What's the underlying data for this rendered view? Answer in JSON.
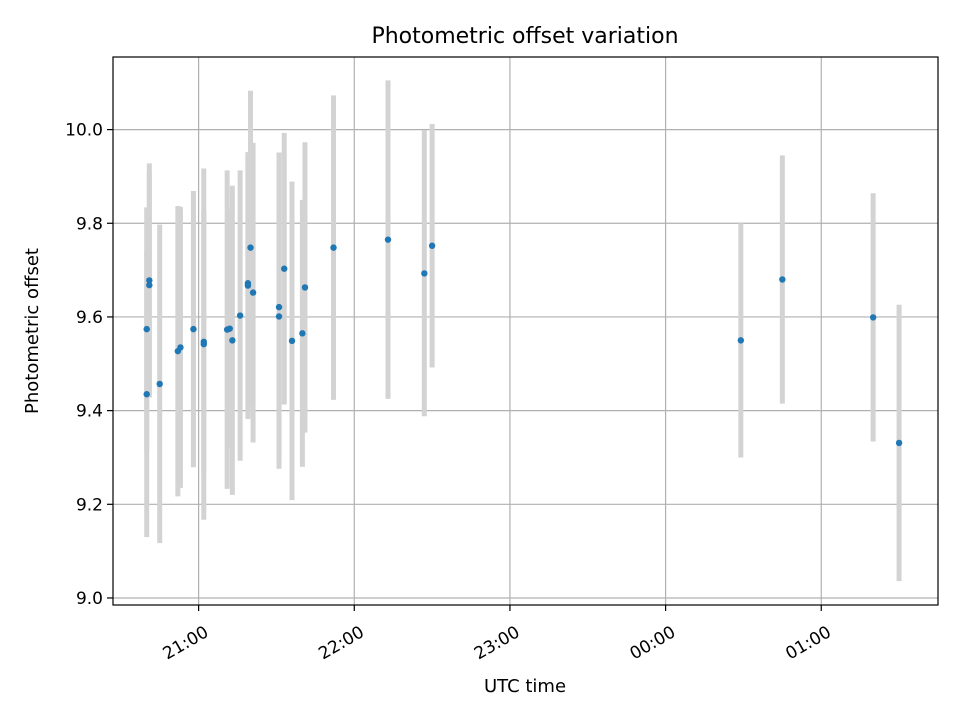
{
  "chart_data": {
    "type": "scatter",
    "title": "Photometric offset variation",
    "xlabel": "UTC time",
    "ylabel": "Photometric offset",
    "x_axis_kind": "time",
    "x_reference_date": "day 0",
    "xlim": [
      "20:27",
      "25:45"
    ],
    "ylim": [
      8.985,
      10.155
    ],
    "grid": true,
    "x_ticks": [
      {
        "label": "21:00",
        "value": "21:00"
      },
      {
        "label": "22:00",
        "value": "22:00"
      },
      {
        "label": "23:00",
        "value": "23:00"
      },
      {
        "label": "00:00",
        "value": "24:00"
      },
      {
        "label": "01:00",
        "value": "25:00"
      }
    ],
    "y_ticks": [
      {
        "label": "9.0",
        "value": 9.0
      },
      {
        "label": "9.2",
        "value": 9.2
      },
      {
        "label": "9.4",
        "value": 9.4
      },
      {
        "label": "9.6",
        "value": 9.6
      },
      {
        "label": "9.8",
        "value": 9.8
      },
      {
        "label": "10.0",
        "value": 10.0
      }
    ],
    "colors": {
      "points": "#1f77b4",
      "errorbars": "#d3d3d3",
      "grid": "#b0b0b0"
    },
    "points": [
      {
        "x": "20:40",
        "y": 9.435,
        "yerr": 0.305
      },
      {
        "x": "20:40",
        "y": 9.574,
        "yerr": 0.26
      },
      {
        "x": "20:41",
        "y": 9.678,
        "yerr": 0.25
      },
      {
        "x": "20:41",
        "y": 9.668,
        "yerr": 0.24
      },
      {
        "x": "20:45",
        "y": 9.457,
        "yerr": 0.34
      },
      {
        "x": "20:52",
        "y": 9.527,
        "yerr": 0.31
      },
      {
        "x": "20:53",
        "y": 9.535,
        "yerr": 0.3
      },
      {
        "x": "20:58",
        "y": 9.574,
        "yerr": 0.295
      },
      {
        "x": "21:02",
        "y": 9.547,
        "yerr": 0.28
      },
      {
        "x": "21:02",
        "y": 9.542,
        "yerr": 0.375
      },
      {
        "x": "21:11",
        "y": 9.573,
        "yerr": 0.34
      },
      {
        "x": "21:12",
        "y": 9.575,
        "yerr": 0.255
      },
      {
        "x": "21:13",
        "y": 9.55,
        "yerr": 0.33
      },
      {
        "x": "21:16",
        "y": 9.603,
        "yerr": 0.31
      },
      {
        "x": "21:19",
        "y": 9.667,
        "yerr": 0.285
      },
      {
        "x": "21:19",
        "y": 9.672,
        "yerr": 0.27
      },
      {
        "x": "21:20",
        "y": 9.748,
        "yerr": 0.335
      },
      {
        "x": "21:21",
        "y": 9.652,
        "yerr": 0.32
      },
      {
        "x": "21:31",
        "y": 9.621,
        "yerr": 0.33
      },
      {
        "x": "21:31",
        "y": 9.601,
        "yerr": 0.325
      },
      {
        "x": "21:33",
        "y": 9.703,
        "yerr": 0.29
      },
      {
        "x": "21:36",
        "y": 9.549,
        "yerr": 0.34
      },
      {
        "x": "21:40",
        "y": 9.565,
        "yerr": 0.285
      },
      {
        "x": "21:41",
        "y": 9.663,
        "yerr": 0.31
      },
      {
        "x": "21:52",
        "y": 9.748,
        "yerr": 0.325
      },
      {
        "x": "22:13",
        "y": 9.765,
        "yerr": 0.34
      },
      {
        "x": "22:27",
        "y": 9.693,
        "yerr": 0.305
      },
      {
        "x": "22:30",
        "y": 9.752,
        "yerr": 0.26
      },
      {
        "x": "24:29",
        "y": 9.55,
        "yerr": 0.25
      },
      {
        "x": "24:45",
        "y": 9.68,
        "yerr": 0.265
      },
      {
        "x": "25:20",
        "y": 9.599,
        "yerr": 0.265
      },
      {
        "x": "25:30",
        "y": 9.331,
        "yerr": 0.295
      }
    ]
  }
}
